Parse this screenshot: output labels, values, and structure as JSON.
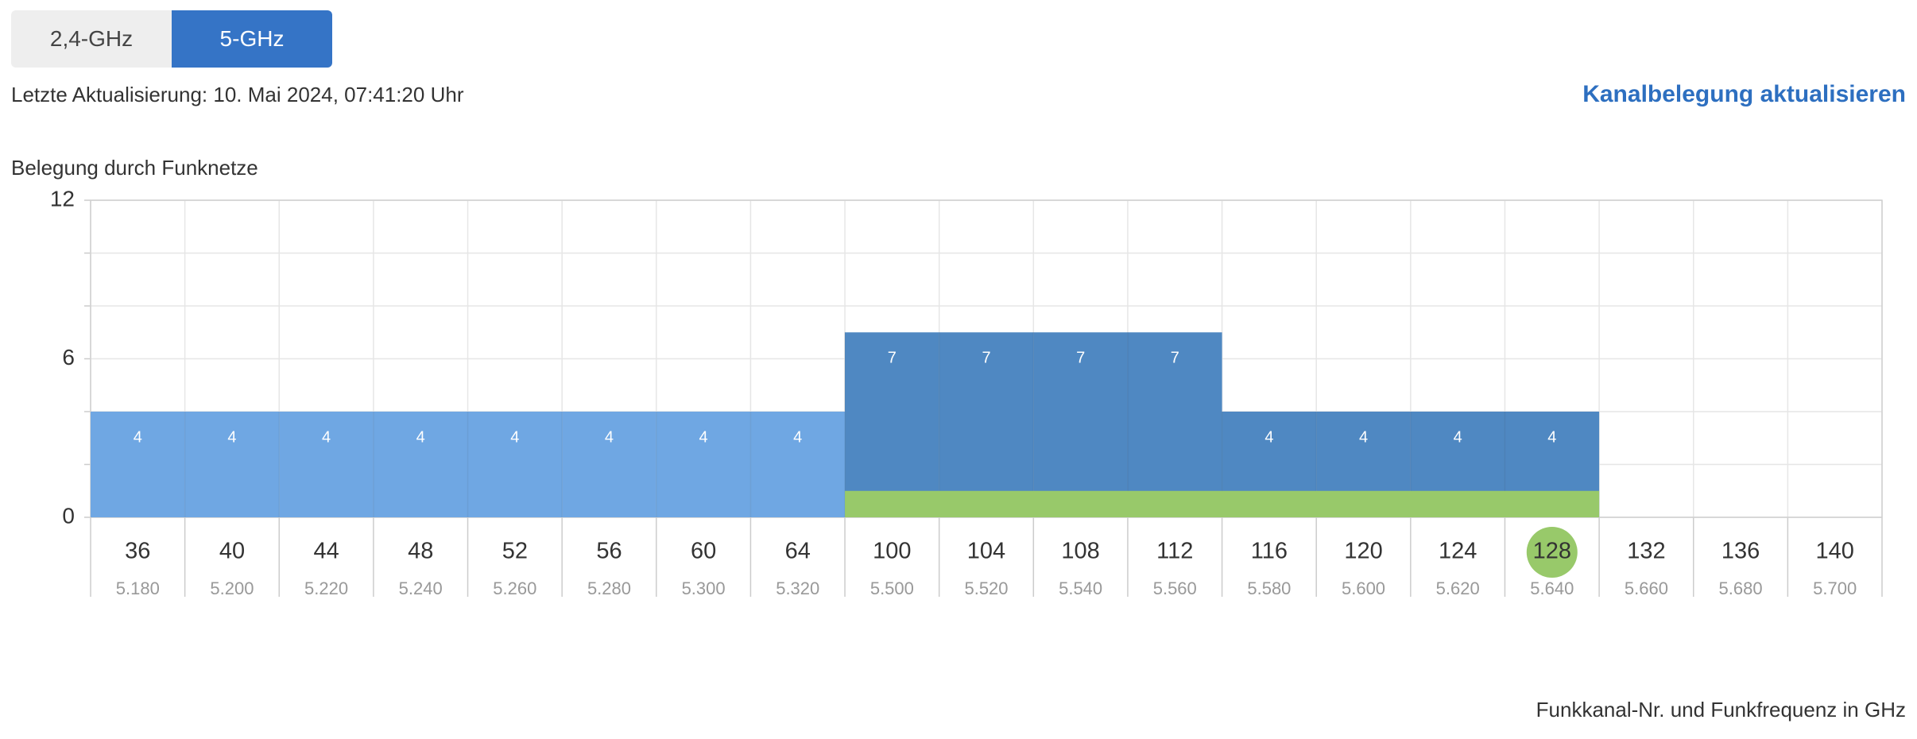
{
  "tabs": [
    {
      "label": "2,4-GHz",
      "active": false
    },
    {
      "label": "5-GHz",
      "active": true
    }
  ],
  "status": {
    "last_update": "Letzte Aktualisierung: 10. Mai 2024, 07:41:20 Uhr",
    "refresh_link": "Kanalbelegung aktualisieren"
  },
  "colors": {
    "active_tab": "#3574c6",
    "link": "#2d6fc0",
    "bar_light_blue": "#6fa7e3",
    "bar_dark_blue": "#4f88c2",
    "own_network_green": "#98c96a",
    "selected_channel": "#98c96a"
  },
  "chart_data": {
    "type": "bar",
    "title": "Belegung durch Funknetze",
    "xlabel": "Funkkanal-Nr. und Funkfrequenz in GHz",
    "ylabel": "",
    "ylim": [
      0,
      12
    ],
    "yticks": [
      0,
      6,
      12
    ],
    "grid": true,
    "categories": [
      "36",
      "40",
      "44",
      "48",
      "52",
      "56",
      "60",
      "64",
      "100",
      "104",
      "108",
      "112",
      "116",
      "120",
      "124",
      "128",
      "132",
      "136",
      "140"
    ],
    "frequencies": [
      "5.180",
      "5.200",
      "5.220",
      "5.240",
      "5.260",
      "5.280",
      "5.300",
      "5.320",
      "5.500",
      "5.520",
      "5.540",
      "5.560",
      "5.580",
      "5.600",
      "5.620",
      "5.640",
      "5.660",
      "5.680",
      "5.700"
    ],
    "values": [
      4,
      4,
      4,
      4,
      4,
      4,
      4,
      4,
      7,
      7,
      7,
      7,
      4,
      4,
      4,
      4,
      0,
      0,
      0
    ],
    "value_labels": [
      "4",
      "4",
      "4",
      "4",
      "4",
      "4",
      "4",
      "4",
      "7",
      "7",
      "7",
      "7",
      "4",
      "4",
      "4",
      "4",
      "",
      "",
      ""
    ],
    "bar_shade": [
      "light",
      "light",
      "light",
      "light",
      "light",
      "light",
      "light",
      "light",
      "dark",
      "dark",
      "dark",
      "dark",
      "dark",
      "dark",
      "dark",
      "dark",
      "",
      "",
      ""
    ],
    "own_network": {
      "from_channel": "100",
      "to_channel": "128",
      "value": 1
    },
    "selected_channel": "128"
  }
}
